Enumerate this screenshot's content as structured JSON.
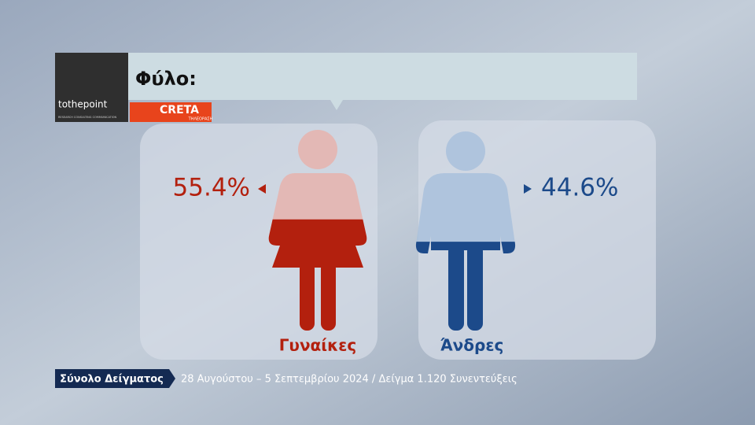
{
  "logo": {
    "name": "tothepoint",
    "tagline": "RESEARCH CONSULTING COMMUNICATION",
    "channel": "CRETA",
    "channel_sub": "ΤΗΛΕΟΡΑΣΗ"
  },
  "chart_data": {
    "type": "pictogram",
    "title": "Φύλο:",
    "categories": [
      "Γυναίκες",
      "Άνδρες"
    ],
    "values": [
      55.4,
      44.6
    ],
    "value_labels": [
      "55.4%",
      "44.6%"
    ],
    "colors": [
      "#b3200e",
      "#1c4a8a"
    ]
  },
  "footer": {
    "label": "Σύνολο Δείγματος",
    "text": "28 Αυγούστου – 5 Σεπτεμβρίου 2024 / Δείγμα 1.120 Συνεντεύξεις"
  }
}
